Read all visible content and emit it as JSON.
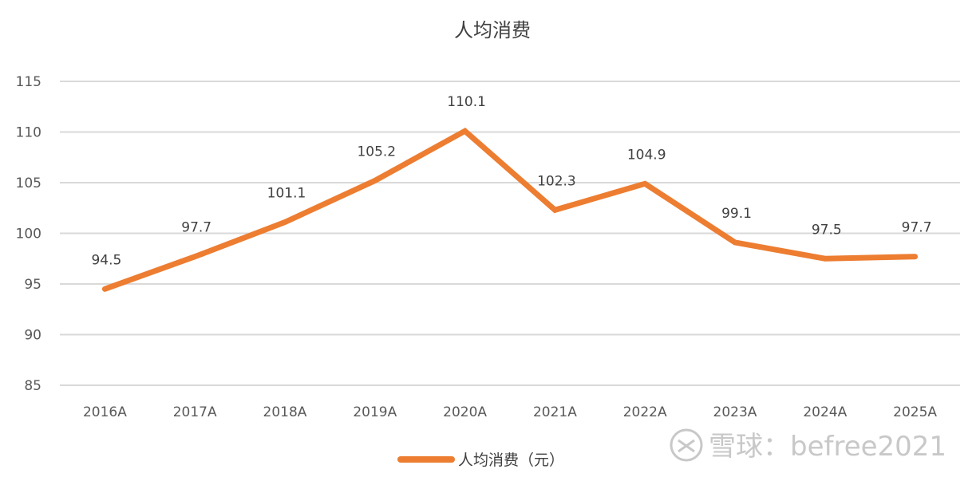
{
  "chart_data": {
    "type": "line",
    "title": "人均消费",
    "xlabel": "",
    "ylabel": "",
    "categories": [
      "2016A",
      "2017A",
      "2018A",
      "2019A",
      "2020A",
      "2021A",
      "2022A",
      "2023A",
      "2024A",
      "2025A"
    ],
    "series": [
      {
        "name": "人均消费（元）",
        "values": [
          94.5,
          97.7,
          101.1,
          105.2,
          110.1,
          102.3,
          104.9,
          99.1,
          97.5,
          97.7
        ],
        "color": "#ed7d31"
      }
    ],
    "ylim": [
      85,
      115
    ],
    "yticks": [
      "85",
      "90",
      "95",
      "100",
      "105",
      "110",
      "115"
    ],
    "data_labels": [
      "94.5",
      "97.7",
      "101.1",
      "105.2",
      "110.1",
      "102.3",
      "104.9",
      "99.1",
      "97.5",
      "97.7"
    ],
    "grid": true,
    "legend_position": "bottom"
  },
  "watermark": {
    "text": "雪球：befree2021",
    "icon": "snowball-logo-icon"
  }
}
